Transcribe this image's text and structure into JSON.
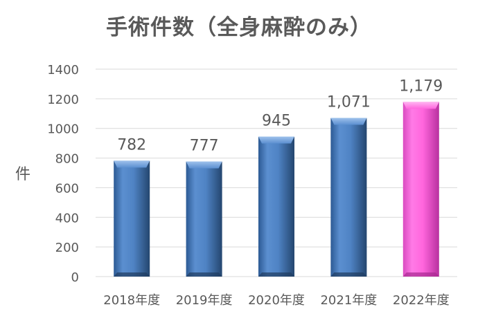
{
  "chart_data": {
    "type": "bar",
    "title": "手術件数（全身麻酔のみ）",
    "ylabel": "件",
    "xlabel": "",
    "categories": [
      "2018年度",
      "2019年度",
      "2020年度",
      "2021年度",
      "2022年度"
    ],
    "values": [
      782,
      777,
      945,
      1071,
      1179
    ],
    "data_labels": [
      "782",
      "777",
      "945",
      "1,071",
      "1,179"
    ],
    "ylim": [
      0,
      1400
    ],
    "yticks": [
      0,
      200,
      400,
      600,
      800,
      1000,
      1200,
      1400
    ],
    "grid": true,
    "legend": "none",
    "colors": {
      "default_bar": "#4a7ebb",
      "highlight_bar": "#ff66dd",
      "grid": "#d9d9d9",
      "text": "#595959"
    },
    "highlight_index": 4
  }
}
